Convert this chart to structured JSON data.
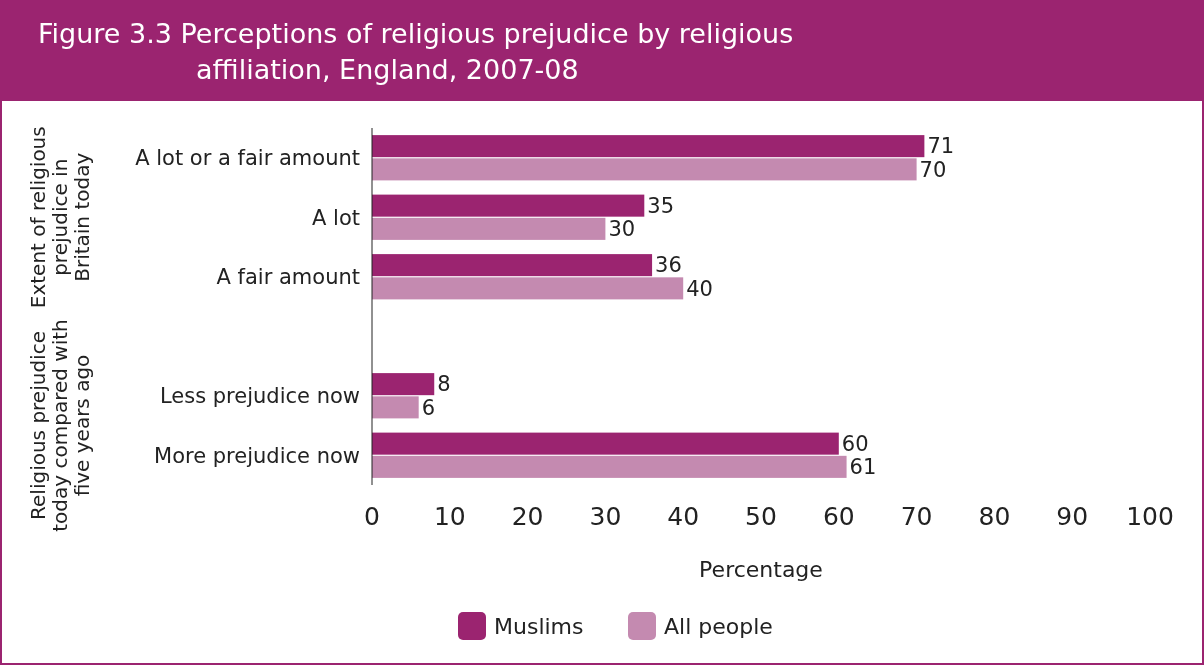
{
  "chart_data": {
    "type": "bar",
    "orientation": "horizontal",
    "title": "Figure 3.3 Perceptions of religious prejudice by religious affiliation, England, 2007-08",
    "categories": [
      "A lot or a fair amount",
      "A lot",
      "A fair amount",
      null,
      "Less prejudice now",
      "More prejudice now"
    ],
    "series": [
      {
        "name": "Muslims",
        "color": "#9b2470",
        "values": [
          71,
          35,
          36,
          null,
          8,
          60
        ]
      },
      {
        "name": "All people",
        "color": "#c48ab0",
        "values": [
          70,
          30,
          40,
          null,
          6,
          61
        ]
      }
    ],
    "xlim": [
      0,
      100
    ],
    "xticks": [
      0,
      10,
      20,
      30,
      40,
      50,
      60,
      70,
      80,
      90,
      100
    ],
    "xlabel": "Percentage",
    "annotations": [
      "Extent of religious prejudice in Britain today",
      "Religious prejudice today compared with five years ago"
    ],
    "data_labels": true,
    "grid": false,
    "legend": "bottom"
  }
}
